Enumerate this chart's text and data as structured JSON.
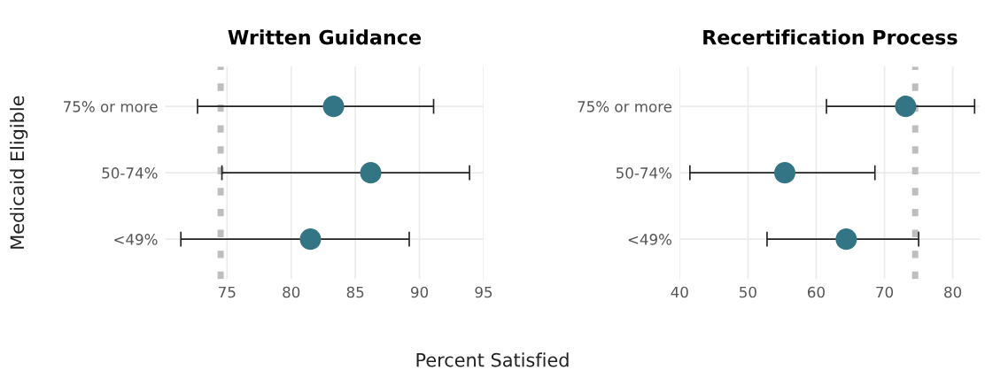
{
  "chart_data": [
    {
      "type": "scatter",
      "title": "Written Guidance",
      "xlabel": "Percent Satisfied",
      "ylabel": "Medicaid Eligible",
      "orientation": "horizontal",
      "categories": [
        "75% or more",
        "50-74%",
        "<49%"
      ],
      "series": [
        {
          "color": "#337485",
          "values": [
            83.3,
            86.2,
            81.5
          ],
          "errors": [
            [
              72.7,
              91.1
            ],
            [
              74.6,
              93.9
            ],
            [
              71.4,
              89.2
            ]
          ]
        }
      ],
      "xlim": [
        70.2,
        95
      ],
      "xticks": [
        75,
        80,
        85,
        90,
        95
      ],
      "grid": true,
      "marker": "circle",
      "ref_lines": [
        {
          "axis": "x",
          "value": 74.5,
          "color": "#bebebe",
          "line_style": "dotted"
        }
      ]
    },
    {
      "type": "scatter",
      "title": "Recertification Process",
      "orientation": "horizontal",
      "categories": [
        "75% or more",
        "50-74%",
        "<49%"
      ],
      "series": [
        {
          "color": "#337485",
          "values": [
            73.1,
            55.4,
            64.4
          ],
          "errors": [
            [
              61.5,
              83.2
            ],
            [
              41.5,
              68.6
            ],
            [
              52.8,
              75.0
            ]
          ]
        }
      ],
      "xlim": [
        40,
        84
      ],
      "xticks": [
        40,
        50,
        60,
        70,
        80
      ],
      "grid": true,
      "marker": "circle",
      "ref_lines": [
        {
          "axis": "x",
          "value": 74.5,
          "color": "#bebebe",
          "line_style": "dotted"
        }
      ]
    }
  ]
}
